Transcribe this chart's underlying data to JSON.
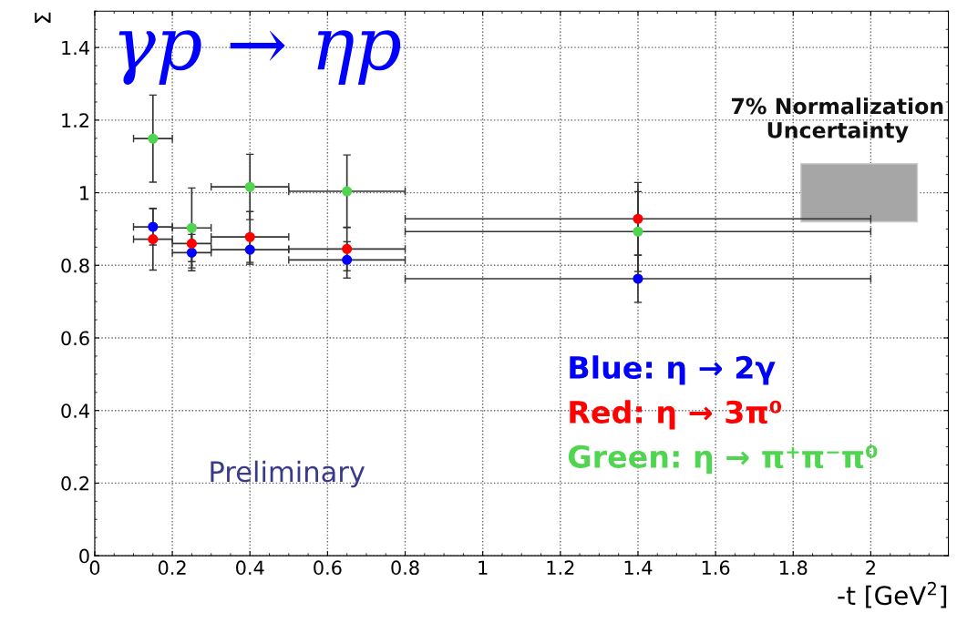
{
  "chart_data": {
    "type": "scatter",
    "ylabel": "Σ",
    "xlabel": "-t [GeV$^{2}$]",
    "annotations": [
      "γp → ηp",
      "7% Normalization\nUncertainty",
      "Preliminary"
    ],
    "xlim": [
      0,
      2.2
    ],
    "ylim": [
      0,
      1.5
    ],
    "xticks": [
      0,
      0.2,
      0.4,
      0.6,
      0.8,
      1,
      1.2,
      1.4,
      1.6,
      1.8,
      2
    ],
    "yticks": [
      0,
      0.2,
      0.4,
      0.6,
      0.8,
      1,
      1.2,
      1.4
    ],
    "grid": true,
    "marker": "circle",
    "legend": "bottom right",
    "series": [
      {
        "name": "Blue: η → 2γ",
        "color": "#0000ff",
        "x": [
          0.15,
          0.25,
          0.4,
          0.65,
          1.4
        ],
        "values": [
          0.906,
          0.835,
          0.843,
          0.815,
          0.763
        ],
        "errors": [
          0.05,
          0.05,
          0.04,
          0.05,
          0.065
        ],
        "xerrors": [
          [
            0.1,
            0.2
          ],
          [
            0.2,
            0.3
          ],
          [
            0.3,
            0.5
          ],
          [
            0.5,
            0.8
          ],
          [
            0.8,
            2.0
          ]
        ]
      },
      {
        "name": "Red: η → 3π⁰",
        "color": "#ff0000",
        "x": [
          0.15,
          0.25,
          0.4,
          0.65,
          1.4
        ],
        "values": [
          0.872,
          0.86,
          0.878,
          0.845,
          0.928
        ],
        "errors": [
          0.085,
          0.05,
          0.07,
          0.06,
          0.1
        ],
        "xerrors": [
          [
            0.1,
            0.2
          ],
          [
            0.2,
            0.3
          ],
          [
            0.3,
            0.5
          ],
          [
            0.5,
            0.8
          ],
          [
            0.8,
            2.0
          ]
        ]
      },
      {
        "name": "Green: η → π⁺π⁻π⁰",
        "color": "#4fd54f",
        "x": [
          0.15,
          0.25,
          0.4,
          0.65,
          1.4
        ],
        "values": [
          1.149,
          0.903,
          1.016,
          1.004,
          0.893
        ],
        "errors": [
          0.12,
          0.11,
          0.09,
          0.1,
          0.11
        ],
        "xerrors": [
          [
            0.1,
            0.2
          ],
          [
            0.2,
            0.3
          ],
          [
            0.3,
            0.5
          ],
          [
            0.5,
            0.8
          ],
          [
            0.8,
            2.0
          ]
        ]
      }
    ]
  }
}
